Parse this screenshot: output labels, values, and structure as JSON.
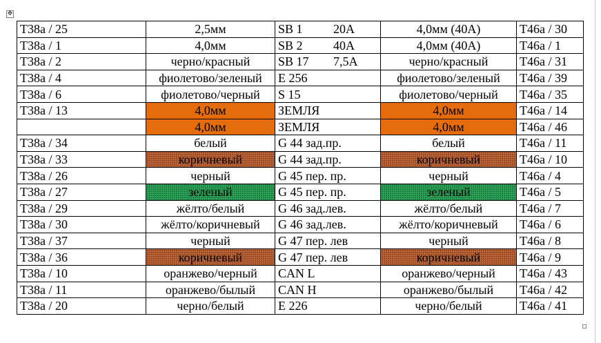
{
  "colors": {
    "orange": "#e46c0a",
    "brown": "#c0693a",
    "green": "#2ea85a"
  },
  "icons": {
    "table_handle": "move-cross-icon",
    "resize_handle": "resize-square-icon"
  },
  "rows": [
    {
      "left_pin": "Т38а / 25",
      "left_wire": "2,5мм",
      "circuit": "SB 1",
      "value": "20А",
      "right_wire": "4,0мм  (40А)",
      "right_pin": "Т46а / 30",
      "fill": ""
    },
    {
      "left_pin": "Т38а / 1",
      "left_wire": "4,0мм",
      "circuit": "SB 2",
      "value": "40А",
      "right_wire": "4,0мм  (40А)",
      "right_pin": "Т46а / 1",
      "fill": ""
    },
    {
      "left_pin": "Т38а / 2",
      "left_wire": "черно/красный",
      "circuit": "SB 17",
      "value": "7,5А",
      "right_wire": "черно/красный",
      "right_pin": "Т46а / 31",
      "fill": ""
    },
    {
      "left_pin": "Т38а / 4",
      "left_wire": "фиолетово/зеленый",
      "circuit": "E 256",
      "value": "",
      "right_wire": "фиолетово/зеленый",
      "right_pin": "Т46а / 39",
      "fill": ""
    },
    {
      "left_pin": "Т38а / 6",
      "left_wire": "фиолетово/черный",
      "circuit": "S 15",
      "value": "",
      "right_wire": "фиолетово/черный",
      "right_pin": "Т46а / 35",
      "fill": ""
    },
    {
      "left_pin": "Т38а / 13",
      "left_wire": "4,0мм",
      "circuit": "ЗЕМЛЯ",
      "value": "",
      "right_wire": "4,0мм",
      "right_pin": "Т46а / 14",
      "fill": "orange"
    },
    {
      "left_pin": "",
      "left_wire": "4,0мм",
      "circuit": "ЗЕМЛЯ",
      "value": "",
      "right_wire": "4,0мм",
      "right_pin": "Т46а / 46",
      "fill": "orange"
    },
    {
      "left_pin": "Т38а / 34",
      "left_wire": "белый",
      "circuit": "G 44 зад.пр.",
      "value": "",
      "right_wire": "белый",
      "right_pin": "Т46а / 11",
      "fill": ""
    },
    {
      "left_pin": "Т38а / 33",
      "left_wire": "коричневый",
      "circuit": "G 44 зад.пр.",
      "value": "",
      "right_wire": "коричневый",
      "right_pin": "Т46а / 10",
      "fill": "brown"
    },
    {
      "left_pin": "Т38а / 26",
      "left_wire": "черный",
      "circuit": "G 45 пер. пр.",
      "value": "",
      "right_wire": "черный",
      "right_pin": "Т46а / 4",
      "fill": ""
    },
    {
      "left_pin": "Т38а / 27",
      "left_wire": "зеленый",
      "circuit": "G 45 пер. пр.",
      "value": "",
      "right_wire": "зеленый",
      "right_pin": "Т46а / 5",
      "fill": "green"
    },
    {
      "left_pin": "Т38а / 29",
      "left_wire": "жёлто/белый",
      "circuit": "G 46 зад.лев.",
      "value": "",
      "right_wire": "жёлто/белый",
      "right_pin": "Т46а / 7",
      "fill": ""
    },
    {
      "left_pin": "Т38а / 30",
      "left_wire": "жёлто/коричневый",
      "circuit": "G 46 зад.лев.",
      "value": "",
      "right_wire": "жёлто/коричневый",
      "right_pin": "Т46а / 6",
      "fill": ""
    },
    {
      "left_pin": "Т38а / 37",
      "left_wire": "черный",
      "circuit": "G 47 пер. лев",
      "value": "",
      "right_wire": "черный",
      "right_pin": "Т46а / 8",
      "fill": ""
    },
    {
      "left_pin": "Т38а / 36",
      "left_wire": "коричневый",
      "circuit": "G 47 пер. лев",
      "value": "",
      "right_wire": "коричневый",
      "right_pin": "Т46а / 9",
      "fill": "brown"
    },
    {
      "left_pin": "Т38а / 10",
      "left_wire": "оранжево/черный",
      "circuit": "CAN L",
      "value": "",
      "right_wire": "оранжево/черный",
      "right_pin": "Т46а / 43",
      "fill": ""
    },
    {
      "left_pin": "Т38а / 11",
      "left_wire": "оранжево/былый",
      "circuit": "CAN H",
      "value": "",
      "right_wire": "оранжево/былый",
      "right_pin": "Т46а / 42",
      "fill": ""
    },
    {
      "left_pin": "Т38а / 20",
      "left_wire": "черно/белый",
      "circuit": "E 226",
      "value": "",
      "right_wire": "черно/белый",
      "right_pin": "Т46а / 41",
      "fill": ""
    }
  ]
}
